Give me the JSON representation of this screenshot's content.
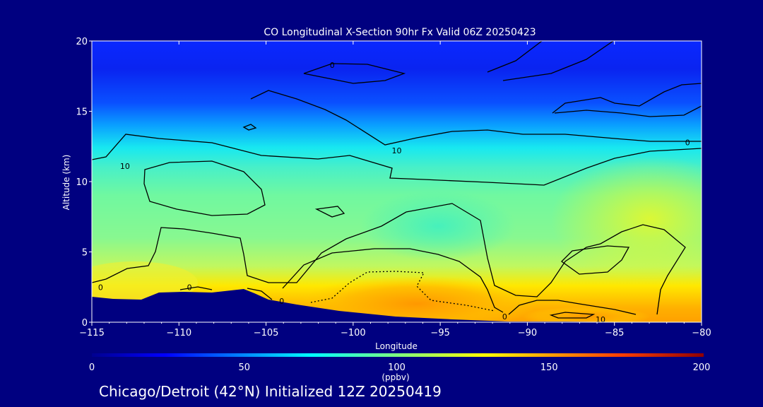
{
  "chart_data": {
    "type": "heatmap",
    "title": "CO Longitudinal X-Section 90hr  Fx Valid 06Z 20250423",
    "xlabel": "Longitude",
    "ylabel": "Altitude (km)",
    "xlim": [
      -115,
      -80
    ],
    "ylim": [
      0,
      20
    ],
    "x_ticks": [
      -115,
      -110,
      -105,
      -100,
      -95,
      -90,
      -85,
      -80
    ],
    "x_tick_labels": [
      "−115",
      "−110",
      "−105",
      "−100",
      "−95",
      "−90",
      "−85",
      "−80"
    ],
    "y_ticks": [
      0,
      5,
      10,
      15,
      20
    ],
    "y_tick_labels": [
      "0",
      "5",
      "10",
      "15",
      "20"
    ],
    "colorbar": {
      "range": [
        0,
        200
      ],
      "ticks": [
        0,
        50,
        100,
        150,
        200
      ],
      "tick_labels": [
        "0",
        "50",
        "100",
        "150",
        "200"
      ],
      "unit_label": "(ppbv)"
    },
    "contour_labels": [
      {
        "text": "0",
        "lon": -101.2,
        "alt": 18.3
      },
      {
        "text": "0",
        "lon": -80.8,
        "alt": 12.8
      },
      {
        "text": "10",
        "lon": -97.5,
        "alt": 12.2
      },
      {
        "text": "10",
        "lon": -113.1,
        "alt": 11.1
      },
      {
        "text": "0",
        "lon": -114.5,
        "alt": 2.5
      },
      {
        "text": "0",
        "lon": -109.4,
        "alt": 2.5
      },
      {
        "text": "0",
        "lon": -104.1,
        "alt": 1.5
      },
      {
        "text": "0",
        "lon": -91.3,
        "alt": 0.4
      },
      {
        "text": "10",
        "lon": -85.8,
        "alt": 0.2
      }
    ],
    "colors": {
      "background": "#000080",
      "terrain": "#000080",
      "contour": "#000000"
    }
  },
  "footer": {
    "init_text": "Chicago/Detroit (42°N) Initialized 12Z 20250419"
  }
}
